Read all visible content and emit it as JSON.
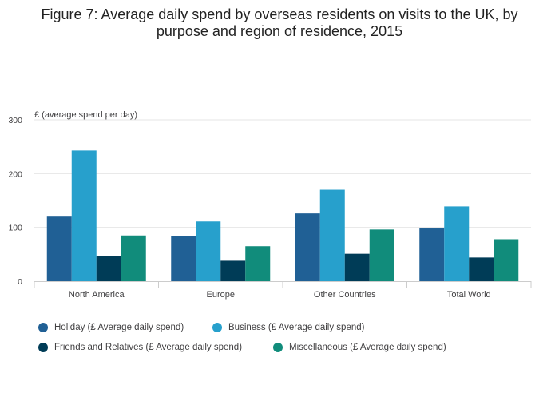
{
  "chart_data": {
    "type": "bar",
    "title": "Figure 7: Average daily spend by overseas residents on visits to the UK, by purpose and region of residence, 2015",
    "ylabel": "£ (average spend per day)",
    "xlabel": "",
    "ylim": [
      0,
      300
    ],
    "yticks": [
      0,
      100,
      200,
      300
    ],
    "grid": true,
    "legend_position": "bottom",
    "categories": [
      "North America",
      "Europe",
      "Other Countries",
      "Total World"
    ],
    "series": [
      {
        "name": "Holiday (£ Average daily spend)",
        "color": "#206095",
        "values": [
          120,
          84,
          126,
          98
        ]
      },
      {
        "name": "Business (£ Average daily spend)",
        "color": "#27a0cc",
        "values": [
          243,
          111,
          170,
          139
        ]
      },
      {
        "name": "Friends and Relatives (£ Average daily spend)",
        "color": "#003c57",
        "values": [
          47,
          38,
          51,
          44
        ]
      },
      {
        "name": "Miscellaneous (£ Average daily spend)",
        "color": "#118c7b",
        "values": [
          85,
          65,
          96,
          78
        ]
      }
    ]
  }
}
